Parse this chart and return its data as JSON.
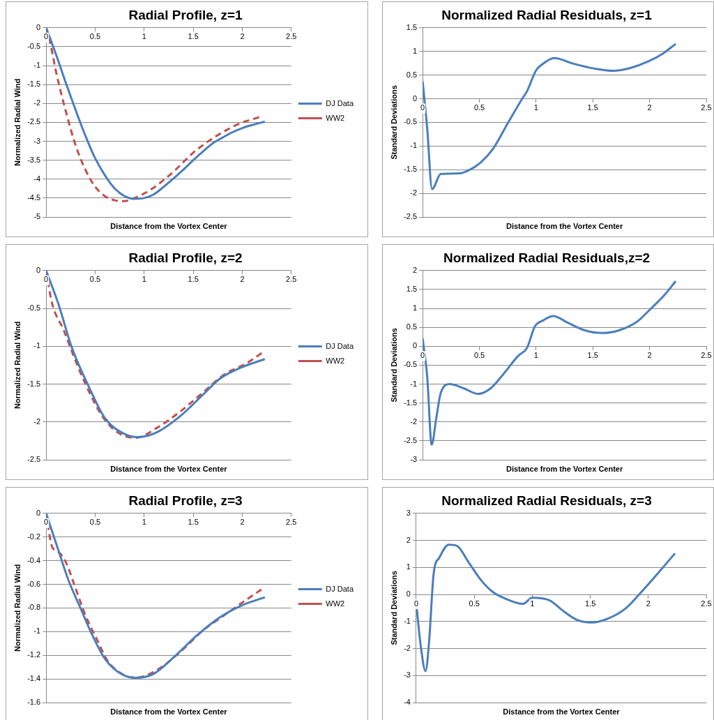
{
  "chart_data": [
    {
      "type": "line",
      "title": "Radial Profile, z=1",
      "xlabel": "Distance from the Vortex Center",
      "ylabel": "Normalized Radial Wind",
      "xlim": [
        0,
        2.5
      ],
      "xticks": [
        0,
        0.5,
        1,
        1.5,
        2,
        2.5
      ],
      "ylim": [
        -5,
        0
      ],
      "yticks": [
        -5,
        -4.5,
        -4,
        -3.5,
        -3,
        -2.5,
        -2,
        -1.5,
        -1,
        -0.5,
        0
      ],
      "grid": "y",
      "legend": "right",
      "marker": "none",
      "series": [
        {
          "name": "DJ Data",
          "color": "#4a7ebb",
          "line_style": "solid",
          "x": [
            0,
            0.1,
            0.2,
            0.3,
            0.4,
            0.5,
            0.6,
            0.7,
            0.8,
            0.9,
            1.0,
            1.1,
            1.2,
            1.3,
            1.4,
            1.5,
            1.6,
            1.7,
            1.8,
            1.9,
            2.0,
            2.1,
            2.23
          ],
          "values": [
            0,
            -0.7,
            -1.45,
            -2.17,
            -2.85,
            -3.45,
            -3.9,
            -4.25,
            -4.45,
            -4.52,
            -4.5,
            -4.4,
            -4.2,
            -3.98,
            -3.75,
            -3.5,
            -3.27,
            -3.05,
            -2.9,
            -2.76,
            -2.65,
            -2.57,
            -2.48
          ]
        },
        {
          "name": "WW2",
          "color": "#c0504d",
          "line_style": "dashed",
          "x": [
            0,
            0.05,
            0.1,
            0.2,
            0.3,
            0.4,
            0.5,
            0.6,
            0.7,
            0.8,
            0.9,
            1.0,
            1.1,
            1.2,
            1.3,
            1.4,
            1.5,
            1.6,
            1.7,
            1.8,
            1.9,
            2.0,
            2.1,
            2.19
          ],
          "values": [
            0,
            -0.5,
            -1.15,
            -2.2,
            -3.1,
            -3.75,
            -4.2,
            -4.45,
            -4.56,
            -4.58,
            -4.5,
            -4.38,
            -4.22,
            -4.02,
            -3.8,
            -3.55,
            -3.3,
            -3.1,
            -2.92,
            -2.76,
            -2.62,
            -2.5,
            -2.42,
            -2.35
          ]
        }
      ]
    },
    {
      "type": "line",
      "title": "Normalized Radial Residuals, z=1",
      "xlabel": "Distance from the Vortex Center",
      "ylabel": "Standard Deviations",
      "xlim": [
        0,
        2.5
      ],
      "xticks": [
        0,
        0.5,
        1,
        1.5,
        2,
        2.5
      ],
      "ylim": [
        -2.5,
        1.5
      ],
      "yticks": [
        -2.5,
        -2,
        -1.5,
        -1,
        -0.5,
        0,
        0.5,
        1,
        1.5
      ],
      "grid": "y",
      "marker": "none",
      "series": [
        {
          "color": "#4a7ebb",
          "line_style": "solid",
          "x": [
            0,
            0.04,
            0.083,
            0.16,
            0.31,
            0.4,
            0.51,
            0.62,
            0.75,
            0.88,
            0.92,
            1.0,
            1.05,
            1.16,
            1.33,
            1.51,
            1.68,
            1.83,
            1.99,
            2.12,
            2.23
          ],
          "values": [
            0.37,
            -0.62,
            -1.91,
            -1.59,
            -1.58,
            -1.52,
            -1.35,
            -1.06,
            -0.52,
            0.01,
            0.16,
            0.6,
            0.72,
            0.86,
            0.74,
            0.64,
            0.59,
            0.65,
            0.79,
            0.96,
            1.16
          ]
        }
      ]
    },
    {
      "type": "line",
      "title": "Radial Profile, z=2",
      "xlabel": "Distance from the Vortex Center",
      "ylabel": "Normalized Radial Wind",
      "xlim": [
        0,
        2.5
      ],
      "xticks": [
        0,
        0.5,
        1,
        1.5,
        2,
        2.5
      ],
      "ylim": [
        -2.5,
        0
      ],
      "yticks": [
        -2.5,
        -2,
        -1.5,
        -1,
        -0.5,
        0
      ],
      "grid": "y",
      "legend": "right",
      "marker": "none",
      "series": [
        {
          "name": "DJ Data",
          "color": "#4a7ebb",
          "line_style": "solid",
          "x": [
            0,
            0.13,
            0.26,
            0.43,
            0.6,
            0.8,
            0.94,
            1.14,
            1.37,
            1.6,
            1.77,
            1.99,
            2.23
          ],
          "values": [
            0,
            -0.46,
            -1.01,
            -1.52,
            -1.95,
            -2.16,
            -2.2,
            -2.13,
            -1.92,
            -1.64,
            -1.43,
            -1.28,
            -1.17
          ]
        },
        {
          "name": "WW2",
          "color": "#c0504d",
          "line_style": "dashed",
          "x": [
            0,
            0.06,
            0.18,
            0.29,
            0.43,
            0.57,
            0.72,
            0.91,
            1.14,
            1.37,
            1.6,
            1.82,
            2.05,
            2.22
          ],
          "values": [
            0,
            -0.43,
            -0.79,
            -1.16,
            -1.58,
            -1.92,
            -2.13,
            -2.21,
            -2.07,
            -1.86,
            -1.61,
            -1.37,
            -1.22,
            -1.07
          ]
        }
      ]
    },
    {
      "type": "line",
      "title": "Normalized Radial Residuals,z=2",
      "xlabel": "Distance from the Vortex Center",
      "ylabel": "Standard Deviations",
      "xlim": [
        0,
        2.5
      ],
      "xticks": [
        0,
        0.5,
        1,
        1.5,
        2,
        2.5
      ],
      "ylim": [
        -3,
        2
      ],
      "yticks": [
        -3,
        -2.5,
        -2,
        -1.5,
        -1,
        -0.5,
        0,
        0.5,
        1,
        1.5,
        2
      ],
      "grid": "y",
      "marker": "none",
      "series": [
        {
          "color": "#4a7ebb",
          "line_style": "solid",
          "x": [
            0,
            0.04,
            0.08,
            0.12,
            0.16,
            0.24,
            0.36,
            0.49,
            0.6,
            0.71,
            0.84,
            0.92,
            0.99,
            1.06,
            1.15,
            1.28,
            1.43,
            1.58,
            1.73,
            1.89,
            2.0,
            2.13,
            2.23
          ],
          "values": [
            0.21,
            -0.8,
            -2.6,
            -1.9,
            -1.23,
            -1.0,
            -1.11,
            -1.26,
            -1.11,
            -0.74,
            -0.26,
            -0.04,
            0.53,
            0.68,
            0.8,
            0.62,
            0.42,
            0.35,
            0.42,
            0.65,
            0.96,
            1.35,
            1.72
          ]
        }
      ]
    },
    {
      "type": "line",
      "title": "Radial Profile, z=3",
      "xlabel": "Distance from the Vortex Center",
      "ylabel": "Normalized Radial Wind",
      "xlim": [
        0,
        2.5
      ],
      "xticks": [
        0,
        0.5,
        1,
        1.5,
        2,
        2.5
      ],
      "ylim": [
        -1.6,
        0
      ],
      "yticks": [
        -1.6,
        -1.4,
        -1.2,
        -1,
        -0.8,
        -0.6,
        -0.4,
        -0.2,
        0
      ],
      "grid": "y",
      "legend": "right",
      "marker": "none",
      "series": [
        {
          "name": "DJ Data",
          "color": "#4a7ebb",
          "line_style": "solid",
          "x": [
            0,
            0.12,
            0.23,
            0.35,
            0.46,
            0.6,
            0.77,
            0.91,
            1.09,
            1.31,
            1.54,
            1.77,
            1.99,
            2.23
          ],
          "values": [
            0,
            -0.3,
            -0.57,
            -0.8,
            -1.01,
            -1.23,
            -1.36,
            -1.39,
            -1.36,
            -1.21,
            -1.03,
            -0.88,
            -0.78,
            -0.71
          ]
        },
        {
          "name": "WW2",
          "color": "#c0504d",
          "line_style": "dashed",
          "x": [
            0,
            0.06,
            0.13,
            0.2,
            0.29,
            0.4,
            0.52,
            0.63,
            0.8,
            0.91,
            1.14,
            1.37,
            1.6,
            1.82,
            1.99,
            2.22
          ],
          "values": [
            0,
            -0.28,
            -0.33,
            -0.41,
            -0.61,
            -0.86,
            -1.07,
            -1.25,
            -1.37,
            -1.39,
            -1.32,
            -1.17,
            -0.99,
            -0.86,
            -0.76,
            -0.63
          ]
        }
      ]
    },
    {
      "type": "line",
      "title": "Normalized Radial Residuals, z=3",
      "xlabel": "Distance from the Vortex Center",
      "ylabel": "Standard Deviations",
      "xlim": [
        0,
        2.5
      ],
      "xticks": [
        0,
        0.5,
        1,
        1.5,
        2,
        2.5
      ],
      "ylim": [
        -4,
        3
      ],
      "yticks": [
        -4,
        -3,
        -2,
        -1,
        0,
        1,
        2,
        3
      ],
      "grid": "y",
      "marker": "none",
      "series": [
        {
          "color": "#4a7ebb",
          "line_style": "solid",
          "x": [
            0,
            0.04,
            0.08,
            0.11,
            0.15,
            0.2,
            0.28,
            0.35,
            0.45,
            0.56,
            0.66,
            0.77,
            0.92,
            1.0,
            1.15,
            1.26,
            1.38,
            1.51,
            1.66,
            1.81,
            1.94,
            2.08,
            2.23
          ],
          "values": [
            -0.33,
            -1.95,
            -2.84,
            -1.78,
            0.77,
            1.37,
            1.84,
            1.8,
            1.2,
            0.52,
            0.09,
            -0.16,
            -0.35,
            -0.12,
            -0.22,
            -0.59,
            -0.93,
            -1.04,
            -0.88,
            -0.5,
            0.09,
            0.77,
            1.52
          ]
        }
      ]
    }
  ]
}
